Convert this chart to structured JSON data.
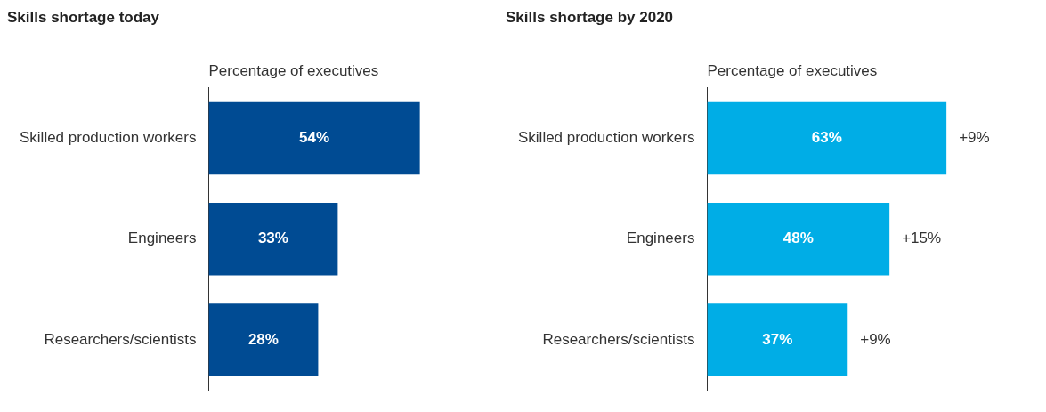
{
  "chart_data": [
    {
      "type": "bar",
      "orientation": "horizontal",
      "title": "Skills shortage today",
      "xlabel": "Percentage of executives",
      "categories": [
        "Skilled production workers",
        "Engineers",
        "Researchers/scientists"
      ],
      "values": [
        54,
        33,
        28
      ],
      "value_labels": [
        "54%",
        "33%",
        "28%"
      ],
      "color": "#004b93",
      "grid": false,
      "legend": false,
      "tick_labels": "y"
    },
    {
      "type": "bar",
      "orientation": "horizontal",
      "title": "Skills shortage by 2020",
      "xlabel": "Percentage of executives",
      "categories": [
        "Skilled production workers",
        "Engineers",
        "Researchers/scientists"
      ],
      "values": [
        63,
        48,
        37
      ],
      "value_labels": [
        "63%",
        "48%",
        "37%"
      ],
      "color": "#00ade6",
      "grid": false,
      "legend": false,
      "tick_labels": "y",
      "annotations": [
        {
          "text": "+9%",
          "x": 63,
          "y": "Skilled production workers"
        },
        {
          "text": "+15%",
          "x": 48,
          "y": "Engineers"
        },
        {
          "text": "+9%",
          "x": 37,
          "y": "Researchers/scientists"
        }
      ]
    }
  ]
}
